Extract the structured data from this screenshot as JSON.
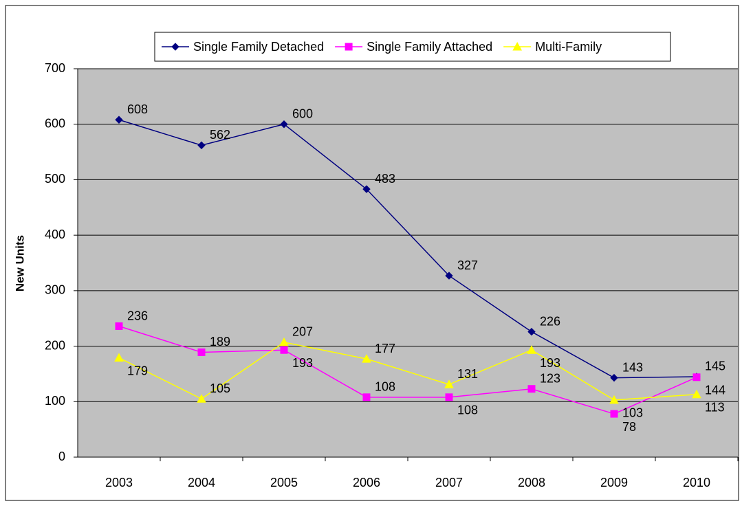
{
  "chart_data": {
    "type": "line",
    "y_label": "New Units",
    "categories": [
      "2003",
      "2004",
      "2005",
      "2006",
      "2007",
      "2008",
      "2009",
      "2010"
    ],
    "series": [
      {
        "name": "Single Family Detached",
        "color": "#000080",
        "marker": "diamond",
        "values": [
          608,
          562,
          600,
          483,
          327,
          226,
          143,
          145
        ]
      },
      {
        "name": "Single Family Attached",
        "color": "#ff00ff",
        "marker": "square",
        "values": [
          236,
          189,
          193,
          108,
          108,
          123,
          78,
          144
        ]
      },
      {
        "name": "Multi-Family",
        "color": "#ffff00",
        "marker": "triangle",
        "values": [
          179,
          105,
          207,
          177,
          131,
          193,
          103,
          113
        ]
      }
    ],
    "ylim": [
      0,
      700
    ],
    "yticks": [
      0,
      100,
      200,
      300,
      400,
      500,
      600,
      700
    ],
    "grid": true,
    "legend": "top"
  }
}
